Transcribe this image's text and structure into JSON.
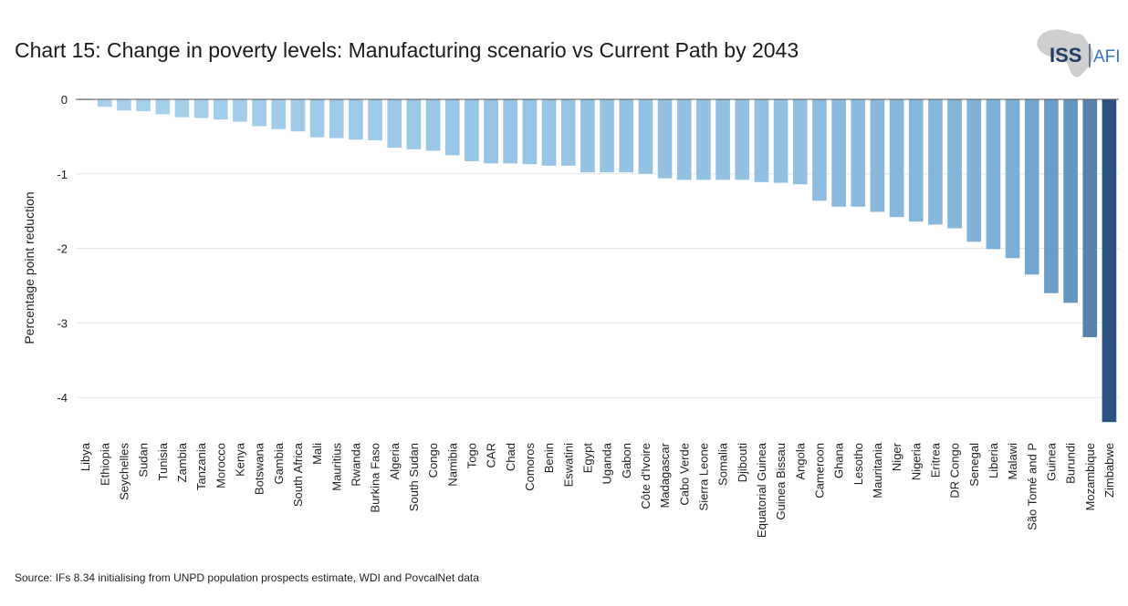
{
  "header": {
    "title": "Chart 15: Change in poverty levels: Manufacturing scenario vs Current Path by 2043",
    "logo_text_iss": "ISS",
    "logo_text_afi": "AFI"
  },
  "footer": {
    "source": "Source: IFs 8.34 initialising from UNPD population prospects estimate, WDI and PovcalNet data"
  },
  "chart_data": {
    "type": "bar",
    "title": "Chart 15: Change in poverty levels: Manufacturing scenario vs Current Path by 2043",
    "xlabel": "",
    "ylabel": "Percentage point reduction",
    "ylim": [
      -4.35,
      0.12
    ],
    "yticks": [
      0,
      -1,
      -2,
      -3,
      -4
    ],
    "grid": true,
    "categories": [
      "Libya",
      "Ethiopia",
      "Seychelles",
      "Sudan",
      "Tunisia",
      "Zambia",
      "Tanzania",
      "Morocco",
      "Kenya",
      "Botswana",
      "Gambia",
      "South Africa",
      "Mali",
      "Mauritius",
      "Rwanda",
      "Burkina Faso",
      "Algeria",
      "South Sudan",
      "Congo",
      "Namibia",
      "Togo",
      "CAR",
      "Chad",
      "Comoros",
      "Benin",
      "Eswatini",
      "Egypt",
      "Uganda",
      "Gabon",
      "Côte d'Ivoire",
      "Madagascar",
      "Cabo Verde",
      "Sierra Leone",
      "Somalia",
      "Djibouti",
      "Equatorial Guinea",
      "Guinea Bissau",
      "Angola",
      "Cameroon",
      "Ghana",
      "Lesotho",
      "Mauritania",
      "Niger",
      "Nigeria",
      "Eritrea",
      "DR Congo",
      "Senegal",
      "Liberia",
      "Malawi",
      "São Tomé and P",
      "Guinea",
      "Burundi",
      "Mozambique",
      "Zimbabwe"
    ],
    "values": [
      -0.01,
      -0.1,
      -0.15,
      -0.16,
      -0.2,
      -0.24,
      -0.25,
      -0.27,
      -0.3,
      -0.36,
      -0.4,
      -0.43,
      -0.51,
      -0.52,
      -0.54,
      -0.55,
      -0.65,
      -0.67,
      -0.69,
      -0.75,
      -0.83,
      -0.86,
      -0.86,
      -0.87,
      -0.89,
      -0.89,
      -0.98,
      -0.98,
      -0.98,
      -1.0,
      -1.06,
      -1.08,
      -1.08,
      -1.08,
      -1.08,
      -1.11,
      -1.12,
      -1.14,
      -1.36,
      -1.44,
      -1.44,
      -1.51,
      -1.58,
      -1.64,
      -1.68,
      -1.73,
      -1.91,
      -2.01,
      -2.13,
      -2.35,
      -2.6,
      -2.73,
      -3.19,
      -4.33
    ],
    "colors": {
      "light": "#a9d3ee",
      "mid": "#7aaed6",
      "dark": "#2b5280"
    }
  }
}
